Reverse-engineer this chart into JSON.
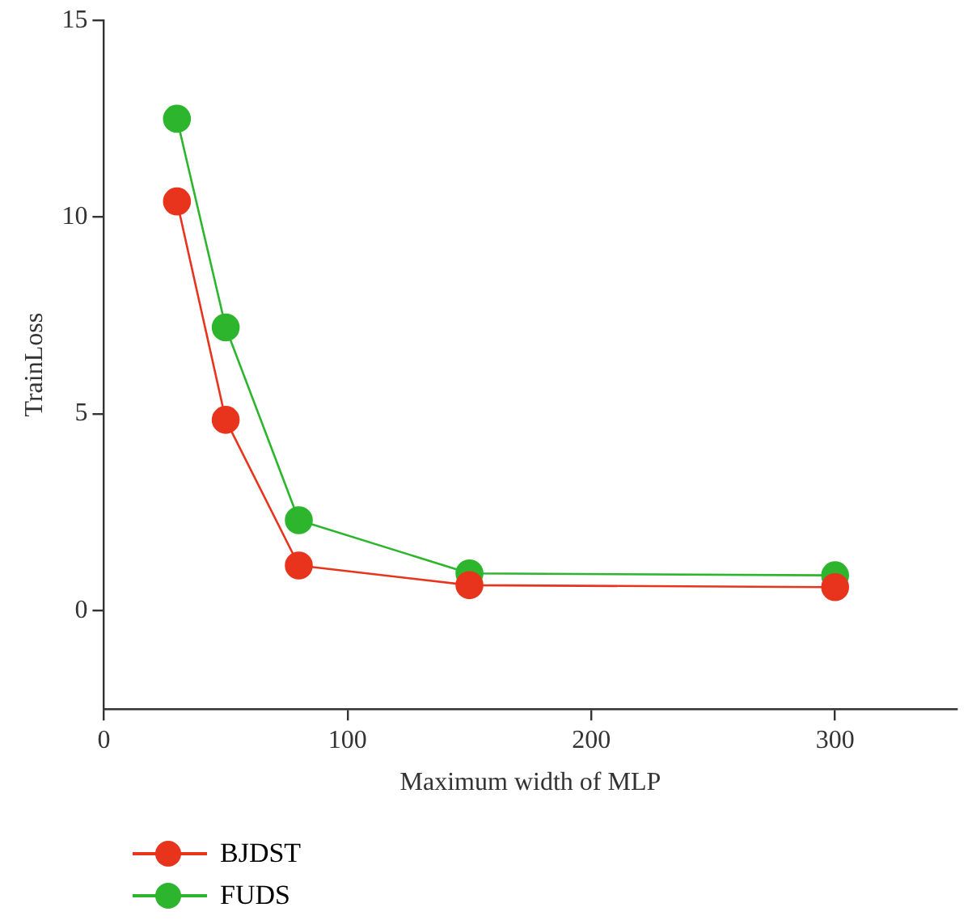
{
  "chart_data": {
    "type": "line",
    "xlabel": "Maximum width of MLP",
    "ylabel": "TrainLoss",
    "x": [
      30,
      50,
      80,
      150,
      300
    ],
    "series": [
      {
        "name": "BJDST",
        "color": "#e8341c",
        "values": [
          10.4,
          4.85,
          1.15,
          0.65,
          0.6
        ]
      },
      {
        "name": "FUDS",
        "color": "#2db52d",
        "values": [
          12.5,
          7.2,
          2.3,
          0.95,
          0.9
        ]
      }
    ],
    "xlim": [
      0,
      350
    ],
    "xticks": [
      0,
      100,
      200,
      300
    ],
    "ylim": [
      -2.5,
      15
    ],
    "yticks": [
      0,
      5,
      10,
      15
    ],
    "grid": false,
    "legend": "bottom left",
    "marker": "circle",
    "line_style": "solid"
  }
}
